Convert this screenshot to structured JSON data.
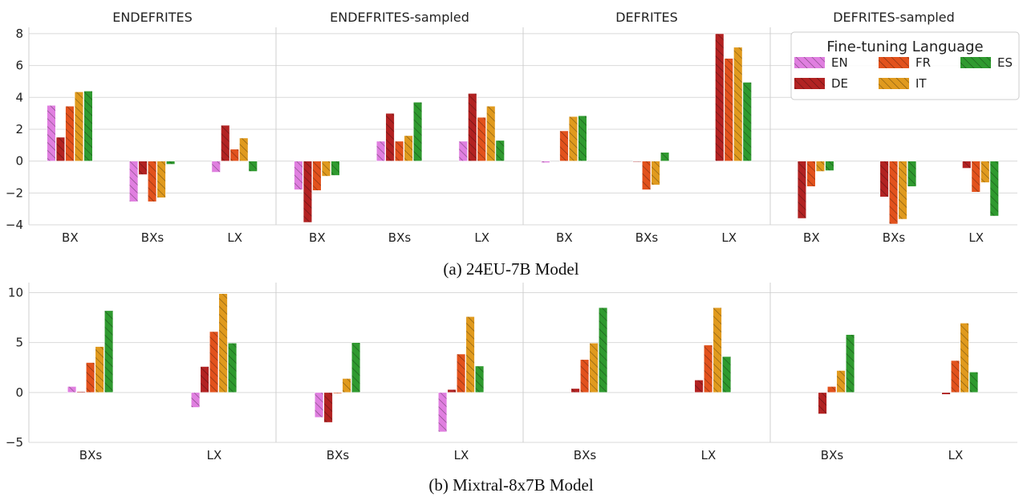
{
  "colors": {
    "EN": "#e07fe0",
    "DE": "#b22222",
    "FR": "#e2521d",
    "IT": "#e09a1e",
    "ES": "#2f9a2f"
  },
  "legend": {
    "title": "Fine-tuning Language",
    "entries": [
      "EN",
      "DE",
      "FR",
      "IT",
      "ES"
    ]
  },
  "chart_data": [
    {
      "type": "bar",
      "caption": "(a) 24EU-7B Model",
      "ylim": [
        -4,
        8.4
      ],
      "yticks": [
        -4,
        -2,
        0,
        2,
        4,
        6,
        8
      ],
      "ytick_labels": [
        "−4",
        "−2",
        "0",
        "2",
        "4",
        "6",
        "8"
      ],
      "series_names": [
        "EN",
        "DE",
        "FR",
        "IT",
        "ES"
      ],
      "panels": [
        {
          "title": "ENDEFRITES",
          "categories": [
            "BX",
            "BXs",
            "LX"
          ],
          "values": [
            [
              3.5,
              1.5,
              3.45,
              4.35,
              4.4
            ],
            [
              -2.55,
              -0.85,
              -2.55,
              -2.3,
              -0.2
            ],
            [
              -0.7,
              2.25,
              0.75,
              1.45,
              -0.65
            ]
          ]
        },
        {
          "title": "ENDEFRITES-sampled",
          "categories": [
            "BX",
            "BXs",
            "LX"
          ],
          "values": [
            [
              -1.8,
              -3.85,
              -1.85,
              -0.95,
              -0.9
            ],
            [
              1.25,
              3.0,
              1.25,
              1.6,
              3.7
            ],
            [
              1.25,
              4.25,
              2.75,
              3.45,
              1.3
            ]
          ]
        },
        {
          "title": "DEFRITES",
          "categories": [
            "BX",
            "BXs",
            "LX"
          ],
          "values": [
            [
              -0.1,
              0,
              1.9,
              2.8,
              2.85
            ],
            [
              0,
              -0.05,
              -1.8,
              -1.5,
              0.55
            ],
            [
              0,
              8.0,
              6.45,
              7.15,
              4.95
            ]
          ]
        },
        {
          "title": "DEFRITES-sampled",
          "categories": [
            "BX",
            "BXs",
            "LX"
          ],
          "values": [
            [
              0,
              -3.6,
              -1.6,
              -0.65,
              -0.6
            ],
            [
              0,
              -2.25,
              -3.95,
              -3.65,
              -1.6
            ],
            [
              0,
              -0.45,
              -1.95,
              -1.35,
              -3.45
            ]
          ]
        }
      ]
    },
    {
      "type": "bar",
      "caption": "(b) Mixtral-8x7B Model",
      "ylim": [
        -5,
        11
      ],
      "yticks": [
        -5,
        0,
        5,
        10
      ],
      "ytick_labels": [
        "−5",
        "0",
        "5",
        "10"
      ],
      "series_names": [
        "EN",
        "DE",
        "FR",
        "IT",
        "ES"
      ],
      "panels": [
        {
          "categories": [
            "BXs",
            "LX"
          ],
          "values": [
            [
              0.6,
              0.1,
              3.0,
              4.6,
              8.2
            ],
            [
              -1.5,
              2.6,
              6.1,
              9.9,
              4.95
            ]
          ]
        },
        {
          "categories": [
            "BXs",
            "LX"
          ],
          "values": [
            [
              -2.5,
              -3.0,
              -0.1,
              1.4,
              5.0
            ],
            [
              -3.95,
              0.3,
              3.85,
              7.6,
              2.65
            ]
          ]
        },
        {
          "categories": [
            "BXs",
            "LX"
          ],
          "values": [
            [
              0,
              0.4,
              3.3,
              4.95,
              8.5
            ],
            [
              0,
              1.25,
              4.75,
              8.5,
              3.6
            ]
          ]
        },
        {
          "categories": [
            "BXs",
            "LX"
          ],
          "values": [
            [
              0,
              -2.15,
              0.6,
              2.2,
              5.8
            ],
            [
              0,
              -0.2,
              3.2,
              6.95,
              2.05
            ]
          ]
        }
      ]
    }
  ]
}
